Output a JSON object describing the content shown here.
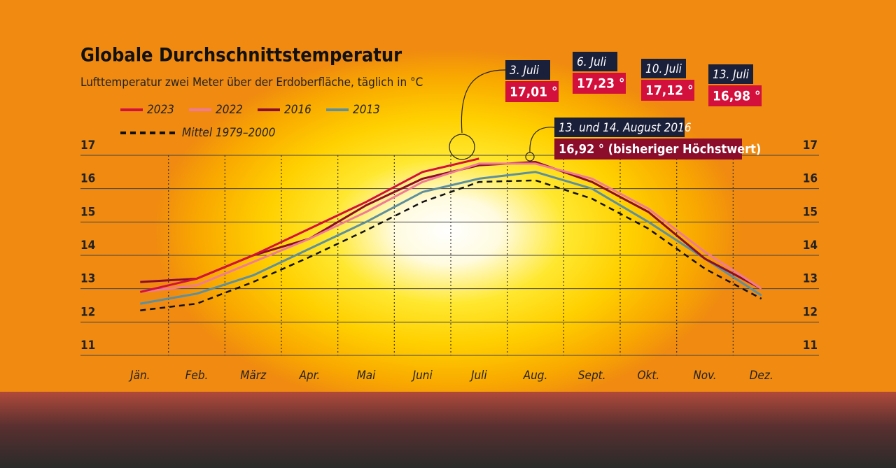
{
  "chart_data": {
    "type": "line",
    "title": "Globale Durchschnittstemperatur",
    "subtitle": "Lufttemperatur zwei Meter über der Erdoberfläche, täglich in °C",
    "categories": [
      "Jän.",
      "Feb.",
      "März",
      "Apr.",
      "Mai",
      "Juni",
      "Juli",
      "Aug.",
      "Sept.",
      "Okt.",
      "Nov.",
      "Dez."
    ],
    "series": [
      {
        "name": "2023",
        "color": "#d3103c",
        "values": [
          12.9,
          13.3,
          14.0,
          14.8,
          15.6,
          16.5,
          16.9,
          null,
          null,
          null,
          null,
          null
        ]
      },
      {
        "name": "2022",
        "color": "#f07a98",
        "values": [
          12.9,
          13.1,
          13.8,
          14.5,
          15.3,
          16.2,
          16.75,
          16.75,
          16.3,
          15.4,
          14.1,
          13.0
        ]
      },
      {
        "name": "2016",
        "color": "#8c0c2c",
        "values": [
          13.2,
          13.3,
          14.0,
          14.5,
          15.5,
          16.3,
          16.7,
          16.8,
          16.2,
          15.3,
          13.9,
          13.0
        ]
      },
      {
        "name": "2013",
        "color": "#5d8f9e",
        "values": [
          12.55,
          12.85,
          13.4,
          14.2,
          15.0,
          15.9,
          16.3,
          16.5,
          16.0,
          15.0,
          13.9,
          12.8
        ]
      },
      {
        "name": "Mittel 1979–2000",
        "color": "#111111",
        "dashed": true,
        "values": [
          12.35,
          12.55,
          13.2,
          13.95,
          14.75,
          15.6,
          16.2,
          16.25,
          15.7,
          14.8,
          13.6,
          12.7
        ]
      }
    ],
    "ylim": [
      11,
      17
    ],
    "yticks": [
      11,
      12,
      13,
      14,
      15,
      16,
      17
    ],
    "grid": true,
    "annotations": [
      {
        "date": "3. Juli",
        "text": "17,01 °"
      },
      {
        "date": "6. Juli",
        "text": "17,23 °"
      },
      {
        "date": "10. Juli",
        "text": "17,12 °"
      },
      {
        "date": "13. Juli",
        "text": "16,98 °"
      },
      {
        "date": "13. und 14. August 2016",
        "text": "16,92 ° (bisheriger Höchstwert)"
      }
    ]
  }
}
